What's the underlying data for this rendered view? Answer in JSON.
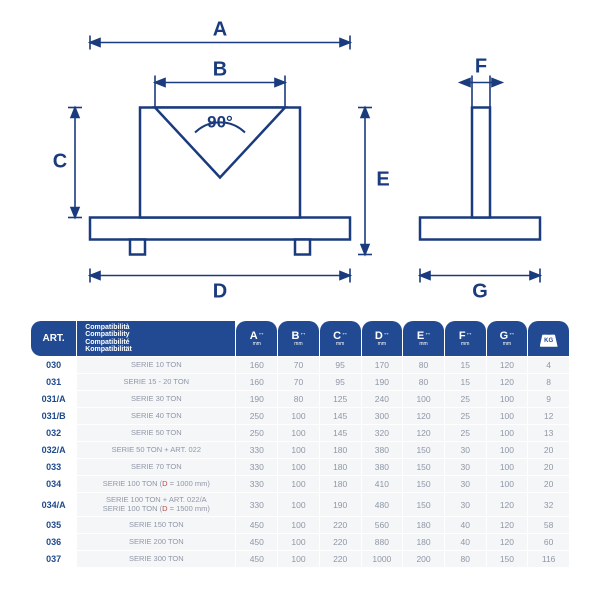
{
  "diagram": {
    "labels": {
      "A": "A",
      "B": "B",
      "C": "C",
      "D": "D",
      "E": "E",
      "F": "F",
      "G": "G",
      "angle": "90°"
    }
  },
  "headers": {
    "art": "ART.",
    "compat_lines": [
      "Compatibilità",
      "Compatibility",
      "Compatibilité",
      "Kompatibilität"
    ],
    "dims": [
      "A",
      "B",
      "C",
      "D",
      "E",
      "F",
      "G"
    ],
    "dim_arrows": "↔",
    "dim_unit": "mm",
    "kg": "KG"
  },
  "rows": [
    {
      "art": "030",
      "compat": "SERIE 10 TON",
      "v": [
        "160",
        "70",
        "95",
        "170",
        "80",
        "15",
        "120",
        "4"
      ]
    },
    {
      "art": "031",
      "compat": "SERIE 15 - 20 TON",
      "v": [
        "160",
        "70",
        "95",
        "190",
        "80",
        "15",
        "120",
        "8"
      ]
    },
    {
      "art": "031/A",
      "compat": "SERIE 30 TON",
      "v": [
        "190",
        "80",
        "125",
        "240",
        "100",
        "25",
        "100",
        "9"
      ]
    },
    {
      "art": "031/B",
      "compat": "SERIE 40 TON",
      "v": [
        "250",
        "100",
        "145",
        "300",
        "120",
        "25",
        "100",
        "12"
      ]
    },
    {
      "art": "032",
      "compat": "SERIE 50 TON",
      "v": [
        "250",
        "100",
        "145",
        "320",
        "120",
        "25",
        "100",
        "13"
      ]
    },
    {
      "art": "032/A",
      "compat": "SERIE 50 TON + ART. 022",
      "v": [
        "330",
        "100",
        "180",
        "380",
        "150",
        "30",
        "100",
        "20"
      ]
    },
    {
      "art": "033",
      "compat": "SERIE 70 TON",
      "v": [
        "330",
        "100",
        "180",
        "380",
        "150",
        "30",
        "100",
        "20"
      ]
    },
    {
      "art": "034",
      "compat_html": "SERIE 100 TON (<span class=\"red\">D</span> = 1000 mm)",
      "v": [
        "330",
        "100",
        "180",
        "410",
        "150",
        "30",
        "100",
        "20"
      ]
    },
    {
      "art": "034/A",
      "compat_html": "SERIE 100 TON + ART. 022/A<br>SERIE 100 TON (<span class=\"red\">D</span> = 1500 mm)",
      "v": [
        "330",
        "100",
        "190",
        "480",
        "150",
        "30",
        "120",
        "32"
      ]
    },
    {
      "art": "035",
      "compat": "SERIE 150 TON",
      "v": [
        "450",
        "100",
        "220",
        "560",
        "180",
        "40",
        "120",
        "58"
      ]
    },
    {
      "art": "036",
      "compat": "SERIE 200 TON",
      "v": [
        "450",
        "100",
        "220",
        "880",
        "180",
        "40",
        "120",
        "60"
      ]
    },
    {
      "art": "037",
      "compat": "SERIE 300 TON",
      "v": [
        "450",
        "100",
        "220",
        "1000",
        "200",
        "80",
        "150",
        "116"
      ]
    }
  ]
}
